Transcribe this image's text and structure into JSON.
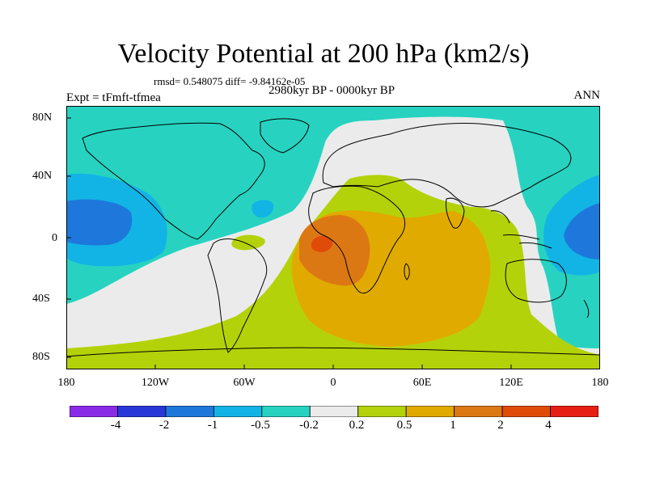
{
  "header": {
    "title": "Velocity Potential at 200 hPa (km2/s)",
    "stats": "rmsd= 0.548075 diff= -9.84162e-05",
    "experiment": "Expt = tFmft-tfmea",
    "period": "2980kyr BP - 0000kyr BP",
    "season": "ANN"
  },
  "map": {
    "y_labels": [
      "80N",
      "40N",
      "0",
      "40S",
      "80S"
    ],
    "x_labels": [
      "180",
      "120W",
      "60W",
      "0",
      "60E",
      "120E",
      "180"
    ]
  },
  "colorbar": {
    "labels": [
      "-4",
      "-2",
      "-1",
      "-0.5",
      "-0.2",
      "0.2",
      "0.5",
      "1",
      "2",
      "4"
    ],
    "colors": [
      "#8a2be8",
      "#2838d8",
      "#1e78dc",
      "#12b4e6",
      "#27d3c0",
      "#ebebeb",
      "#b4d20a",
      "#e1aa00",
      "#dc7814",
      "#e14b0a",
      "#e61e14"
    ]
  },
  "fill_colors": {
    "neg_weak": "#27d3c0",
    "neg_mid": "#12b4e6",
    "neg_strong": "#1e78dc",
    "near_zero": "#ebebeb",
    "pos_weak": "#b4d20a",
    "pos_mid": "#e1aa00",
    "pos_strong": "#dc7814",
    "pos_max": "#e14b0a"
  }
}
